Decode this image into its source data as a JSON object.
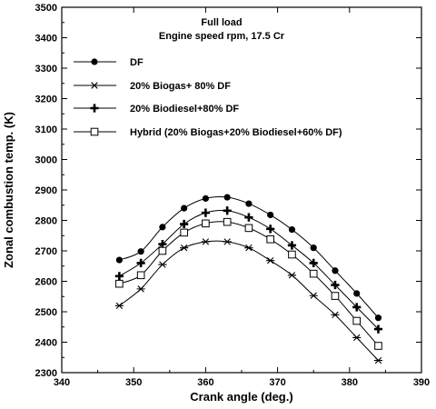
{
  "chart_data": {
    "type": "line",
    "title": "Full load",
    "subtitle": "Engine speed  rpm, 17.5 Cr",
    "xlabel": "Crank angle (deg.)",
    "ylabel": "Zonal combustion temp. (K)",
    "xlim": [
      340,
      390
    ],
    "ylim": [
      2300,
      3500
    ],
    "xticks": [
      340,
      350,
      360,
      370,
      380,
      390
    ],
    "yticks": [
      2300,
      2400,
      2500,
      2600,
      2700,
      2800,
      2900,
      3000,
      3100,
      3200,
      3300,
      3400,
      3500
    ],
    "grid": false,
    "legend_position": "top-left",
    "x": [
      348,
      351,
      354,
      357,
      360,
      363,
      366,
      369,
      372,
      375,
      378,
      381,
      384
    ],
    "series": [
      {
        "name": "DF",
        "marker": "filled-circle",
        "values": [
          2670,
          2698,
          2778,
          2840,
          2872,
          2876,
          2855,
          2818,
          2770,
          2710,
          2635,
          2560,
          2480
        ]
      },
      {
        "name": "20% Biogas+ 80% DF",
        "marker": "asterisk",
        "values": [
          2520,
          2575,
          2655,
          2710,
          2730,
          2730,
          2710,
          2668,
          2620,
          2553,
          2490,
          2415,
          2340
        ]
      },
      {
        "name": "20% Biodiesel+80% DF",
        "marker": "plus",
        "values": [
          2617,
          2660,
          2722,
          2788,
          2825,
          2832,
          2810,
          2772,
          2718,
          2660,
          2588,
          2515,
          2443
        ]
      },
      {
        "name": "Hybrid (20% Biogas+20% Biodiesel+60% DF)",
        "marker": "open-square",
        "values": [
          2592,
          2620,
          2700,
          2760,
          2790,
          2795,
          2775,
          2738,
          2688,
          2625,
          2552,
          2470,
          2388
        ]
      }
    ]
  }
}
